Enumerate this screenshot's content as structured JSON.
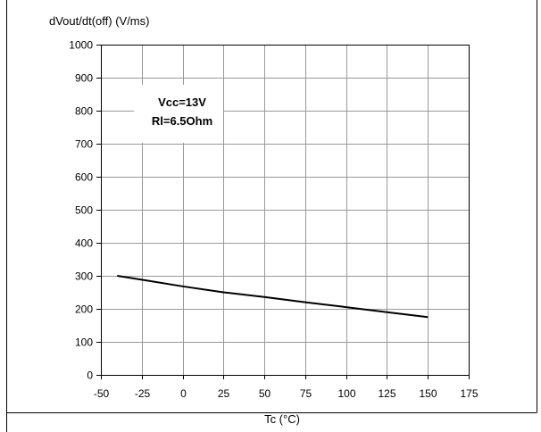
{
  "chart_data": {
    "type": "line",
    "title": "",
    "ylabel": "dVout/dt(off) (V/ms)",
    "xlabel": "Tc (°C)",
    "xlim": [
      -50,
      175
    ],
    "ylim": [
      0,
      1000
    ],
    "x_ticks": [
      -50,
      -25,
      0,
      25,
      50,
      75,
      100,
      125,
      150,
      175
    ],
    "y_ticks": [
      0,
      100,
      200,
      300,
      400,
      500,
      600,
      700,
      800,
      900,
      1000
    ],
    "grid": true,
    "legend": "none",
    "annotations": [
      "Vcc=13V",
      "Rl=6.5Ohm"
    ],
    "series": [
      {
        "x": [
          -40,
          -25,
          0,
          25,
          50,
          75,
          100,
          125,
          150
        ],
        "y": [
          300,
          288,
          268,
          250,
          236,
          220,
          205,
          190,
          175
        ]
      }
    ],
    "colors": {
      "line": "#000000",
      "grid": "#999999",
      "axis": "#000000"
    }
  }
}
